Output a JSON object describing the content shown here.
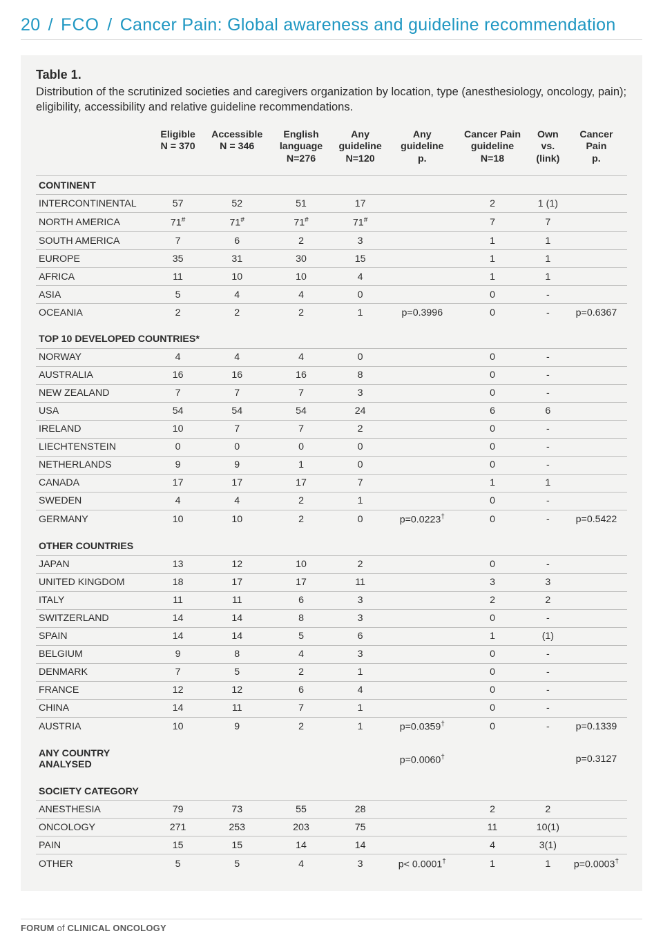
{
  "header": {
    "pagenum": "20",
    "fco": "FCO",
    "sep": "/",
    "title": "Cancer Pain: Global awareness and guideline recommendation"
  },
  "table": {
    "title": "Table 1.",
    "caption": "Distribution of the scrutinized societies and caregivers organization by location, type (anesthesiology, oncology, pain); eligibility, accessibility and relative guideline recommendations.",
    "columns": [
      {
        "l1": "",
        "l2": "",
        "l3": ""
      },
      {
        "l1": "Eligible",
        "l2": "N = 370",
        "l3": ""
      },
      {
        "l1": "Accessible",
        "l2": "N = 346",
        "l3": ""
      },
      {
        "l1": "English",
        "l2": "language",
        "l3": "N=276"
      },
      {
        "l1": "Any",
        "l2": "guideline",
        "l3": "N=120"
      },
      {
        "l1": "Any",
        "l2": "guideline",
        "l3": "p."
      },
      {
        "l1": "Cancer Pain",
        "l2": "guideline",
        "l3": "N=18"
      },
      {
        "l1": "Own",
        "l2": "vs.",
        "l3": "(link)"
      },
      {
        "l1": "Cancer",
        "l2": "Pain",
        "l3": "p."
      }
    ],
    "sections": [
      {
        "title": "CONTINENT",
        "rows": [
          [
            "INTERCONTINENTAL",
            "57",
            "52",
            "51",
            "17",
            "",
            "2",
            "1 (1)",
            ""
          ],
          [
            "NORTH AMERICA",
            "71#",
            "71#",
            "71#",
            "71#",
            "",
            "7",
            "7",
            ""
          ],
          [
            "SOUTH AMERICA",
            "7",
            "6",
            "2",
            "3",
            "",
            "1",
            "1",
            ""
          ],
          [
            "EUROPE",
            "35",
            "31",
            "30",
            "15",
            "",
            "1",
            "1",
            ""
          ],
          [
            "AFRICA",
            "11",
            "10",
            "10",
            "4",
            "",
            "1",
            "1",
            ""
          ],
          [
            "ASIA",
            "5",
            "4",
            "4",
            "0",
            "",
            "0",
            "-",
            ""
          ],
          [
            "OCEANIA",
            "2",
            "2",
            "2",
            "1",
            "p=0.3996",
            "0",
            "-",
            "p=0.6367"
          ]
        ]
      },
      {
        "title": "TOP 10 DEVELOPED COUNTRIES*",
        "rows": [
          [
            "NORWAY",
            "4",
            "4",
            "4",
            "0",
            "",
            "0",
            "-",
            ""
          ],
          [
            "AUSTRALIA",
            "16",
            "16",
            "16",
            "8",
            "",
            "0",
            "-",
            ""
          ],
          [
            "NEW ZEALAND",
            "7",
            "7",
            "7",
            "3",
            "",
            "0",
            "-",
            ""
          ],
          [
            "USA",
            "54",
            "54",
            "54",
            "24",
            "",
            "6",
            "6",
            ""
          ],
          [
            "IRELAND",
            "10",
            "7",
            "7",
            "2",
            "",
            "0",
            "-",
            ""
          ],
          [
            "LIECHTENSTEIN",
            "0",
            "0",
            "0",
            "0",
            "",
            "0",
            "-",
            ""
          ],
          [
            "NETHERLANDS",
            "9",
            "9",
            "1",
            "0",
            "",
            "0",
            "-",
            ""
          ],
          [
            "CANADA",
            "17",
            "17",
            "17",
            "7",
            "",
            "1",
            "1",
            ""
          ],
          [
            "SWEDEN",
            "4",
            "4",
            "2",
            "1",
            "",
            "0",
            "-",
            ""
          ],
          [
            "GERMANY",
            "10",
            "10",
            "2",
            "0",
            "p=0.0223†",
            "0",
            "-",
            "p=0.5422"
          ]
        ]
      },
      {
        "title": "OTHER COUNTRIES",
        "rows": [
          [
            "JAPAN",
            "13",
            "12",
            "10",
            "2",
            "",
            "0",
            "-",
            ""
          ],
          [
            "UNITED KINGDOM",
            "18",
            "17",
            "17",
            "11",
            "",
            "3",
            "3",
            ""
          ],
          [
            "ITALY",
            "11",
            "11",
            "6",
            "3",
            "",
            "2",
            "2",
            ""
          ],
          [
            "SWITZERLAND",
            "14",
            "14",
            "8",
            "3",
            "",
            "0",
            "-",
            ""
          ],
          [
            "SPAIN",
            "14",
            "14",
            "5",
            "6",
            "",
            "1",
            "(1)",
            ""
          ],
          [
            "BELGIUM",
            "9",
            "8",
            "4",
            "3",
            "",
            "0",
            "-",
            ""
          ],
          [
            "DENMARK",
            "7",
            "5",
            "2",
            "1",
            "",
            "0",
            "-",
            ""
          ],
          [
            "FRANCE",
            "12",
            "12",
            "6",
            "4",
            "",
            "0",
            "-",
            ""
          ],
          [
            "CHINA",
            "14",
            "11",
            "7",
            "1",
            "",
            "0",
            "-",
            ""
          ],
          [
            "AUSTRIA",
            "10",
            "9",
            "2",
            "1",
            "p=0.0359†",
            "0",
            "-",
            "p=0.1339"
          ]
        ]
      },
      {
        "title": "ANY COUNTRY ANALYSED",
        "inline_values": [
          "",
          "",
          "",
          "",
          "",
          "p=0.0060†",
          "",
          "",
          "p=0.3127"
        ],
        "rows": []
      },
      {
        "title": "SOCIETY CATEGORY",
        "rows": [
          [
            "ANESTHESIA",
            "79",
            "73",
            "55",
            "28",
            "",
            "2",
            "2",
            ""
          ],
          [
            "ONCOLOGY",
            "271",
            "253",
            "203",
            "75",
            "",
            "11",
            "10(1)",
            ""
          ],
          [
            "PAIN",
            "15",
            "15",
            "14",
            "14",
            "",
            "4",
            "3(1)",
            ""
          ],
          [
            "OTHER",
            "5",
            "5",
            "4",
            "3",
            "p< 0.0001†",
            "1",
            "1",
            "p=0.0003†"
          ]
        ]
      }
    ]
  },
  "footer": {
    "text": "FORUM of CLINICAL ONCOLOGY"
  },
  "style": {
    "accent": "#1f97c2",
    "rule": "#bdbdbc",
    "panel_bg": "#f3f3f2"
  }
}
